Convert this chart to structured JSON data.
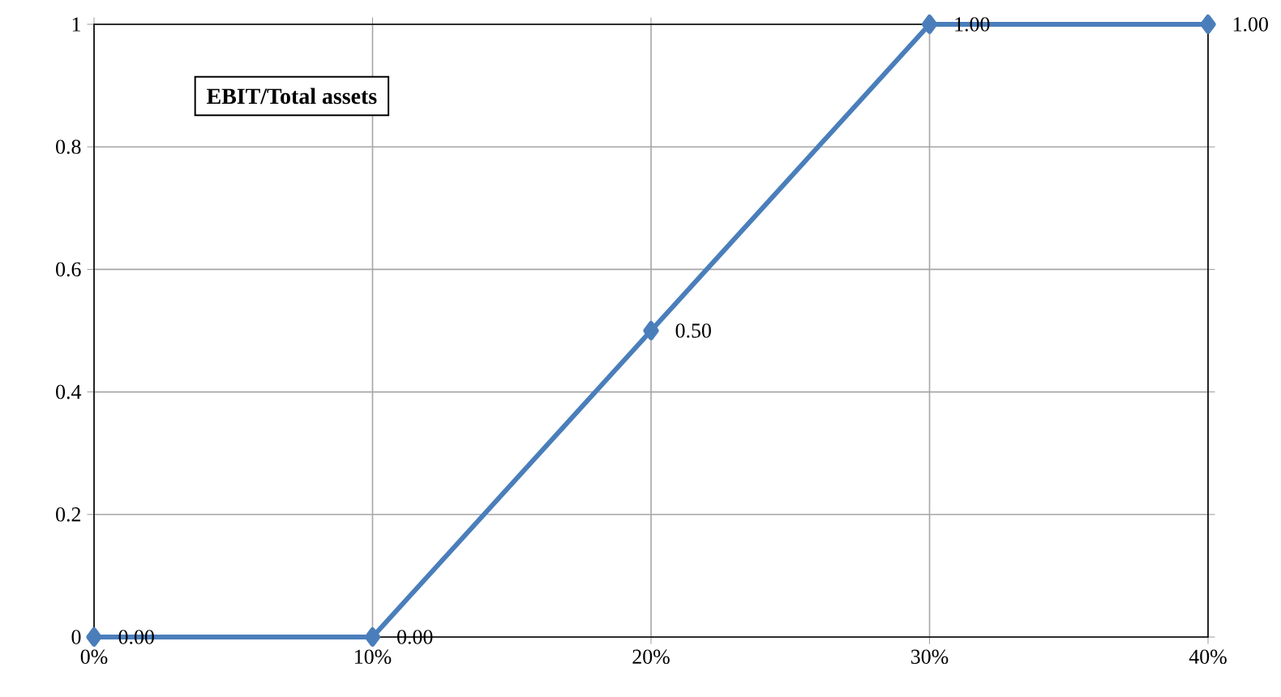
{
  "chart_data": {
    "type": "line",
    "title": "EBIT/Total assets",
    "x": [
      0,
      10,
      20,
      30,
      40
    ],
    "series": [
      {
        "color": "#4a7ebb",
        "values": [
          0,
          0,
          0.5,
          1,
          1
        ],
        "value_labels": [
          "0.00",
          "0.00",
          "0.50",
          "1.00",
          "1.00"
        ]
      }
    ],
    "xlim": [
      0,
      40
    ],
    "xticks": [
      {
        "value": 0,
        "label": "0%"
      },
      {
        "value": 10,
        "label": "10%"
      },
      {
        "value": 20,
        "label": "20%"
      },
      {
        "value": 30,
        "label": "30%"
      },
      {
        "value": 40,
        "label": "40%"
      }
    ],
    "ylim": [
      0,
      1
    ],
    "yticks": [
      0,
      0.2,
      0.4,
      0.6,
      0.8,
      1
    ],
    "grid": true,
    "marker": "diamond",
    "line_style": "solid"
  }
}
